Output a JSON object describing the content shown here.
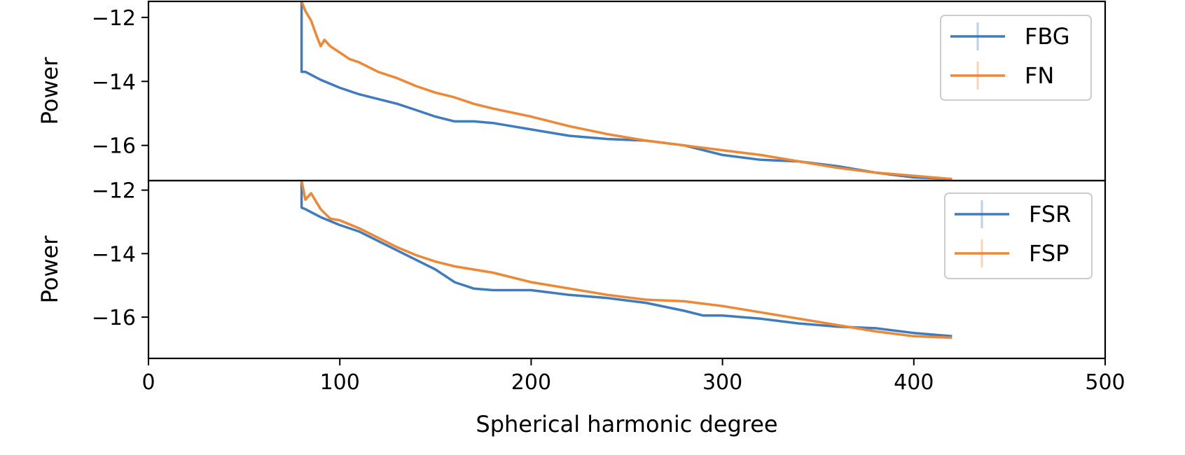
{
  "chart_data": [
    {
      "type": "line",
      "xlabel": "",
      "ylabel": "Power",
      "xlim": [
        0,
        500
      ],
      "ylim": [
        -17.1,
        -11.5
      ],
      "yticks": [
        -12,
        -14,
        -16
      ],
      "yticklabels": [
        "−12",
        "−14",
        "−16"
      ],
      "grid": false,
      "legend_position": "top-right",
      "series": [
        {
          "name": "FBG",
          "color": "#3f7cbf",
          "x": [
            80,
            80,
            82,
            90,
            100,
            110,
            120,
            130,
            140,
            150,
            160,
            170,
            180,
            190,
            200,
            220,
            240,
            260,
            280,
            300,
            320,
            340,
            360,
            380,
            400,
            420
          ],
          "y": [
            -11.5,
            -13.7,
            -13.7,
            -13.95,
            -14.2,
            -14.4,
            -14.55,
            -14.7,
            -14.9,
            -15.1,
            -15.25,
            -15.25,
            -15.3,
            -15.4,
            -15.5,
            -15.7,
            -15.8,
            -15.85,
            -16.0,
            -16.3,
            -16.45,
            -16.5,
            -16.65,
            -16.85,
            -17.0,
            -17.05
          ]
        },
        {
          "name": "FN",
          "color": "#ef8733",
          "x": [
            80,
            82,
            85,
            88,
            90,
            92,
            95,
            100,
            105,
            110,
            120,
            130,
            140,
            150,
            160,
            170,
            180,
            200,
            220,
            240,
            260,
            280,
            300,
            320,
            340,
            360,
            380,
            400,
            420
          ],
          "y": [
            -11.5,
            -11.8,
            -12.1,
            -12.6,
            -12.9,
            -12.7,
            -12.9,
            -13.1,
            -13.3,
            -13.4,
            -13.7,
            -13.9,
            -14.15,
            -14.35,
            -14.5,
            -14.7,
            -14.85,
            -15.1,
            -15.4,
            -15.65,
            -15.85,
            -16.0,
            -16.15,
            -16.3,
            -16.5,
            -16.7,
            -16.85,
            -16.95,
            -17.05
          ]
        }
      ]
    },
    {
      "type": "line",
      "xlabel": "Spherical harmonic degree",
      "ylabel": "Power",
      "xlim": [
        0,
        500
      ],
      "ylim": [
        -17.3,
        -11.7
      ],
      "xticks": [
        0,
        100,
        200,
        300,
        400,
        500
      ],
      "xticklabels": [
        "0",
        "100",
        "200",
        "300",
        "400",
        "500"
      ],
      "yticks": [
        -12,
        -14,
        -16
      ],
      "yticklabels": [
        "−12",
        "−14",
        "−16"
      ],
      "grid": false,
      "legend_position": "top-right",
      "series": [
        {
          "name": "FSR",
          "color": "#3f7cbf",
          "x": [
            80,
            80,
            82,
            90,
            100,
            110,
            120,
            130,
            140,
            150,
            160,
            170,
            180,
            190,
            200,
            220,
            240,
            260,
            280,
            290,
            300,
            320,
            340,
            360,
            380,
            400,
            420
          ],
          "y": [
            -11.7,
            -12.55,
            -12.6,
            -12.85,
            -13.1,
            -13.3,
            -13.6,
            -13.9,
            -14.2,
            -14.5,
            -14.9,
            -15.1,
            -15.15,
            -15.15,
            -15.15,
            -15.3,
            -15.4,
            -15.55,
            -15.8,
            -15.95,
            -15.95,
            -16.05,
            -16.2,
            -16.3,
            -16.35,
            -16.5,
            -16.6
          ]
        },
        {
          "name": "FSP",
          "color": "#ef8733",
          "x": [
            80,
            82,
            85,
            88,
            90,
            95,
            100,
            110,
            120,
            130,
            140,
            150,
            160,
            170,
            180,
            200,
            220,
            240,
            260,
            280,
            300,
            320,
            340,
            360,
            380,
            400,
            420
          ],
          "y": [
            -11.7,
            -12.3,
            -12.1,
            -12.4,
            -12.6,
            -12.9,
            -12.95,
            -13.2,
            -13.5,
            -13.8,
            -14.05,
            -14.25,
            -14.4,
            -14.5,
            -14.6,
            -14.9,
            -15.1,
            -15.3,
            -15.45,
            -15.5,
            -15.65,
            -15.85,
            -16.05,
            -16.25,
            -16.45,
            -16.6,
            -16.65
          ]
        }
      ]
    }
  ]
}
